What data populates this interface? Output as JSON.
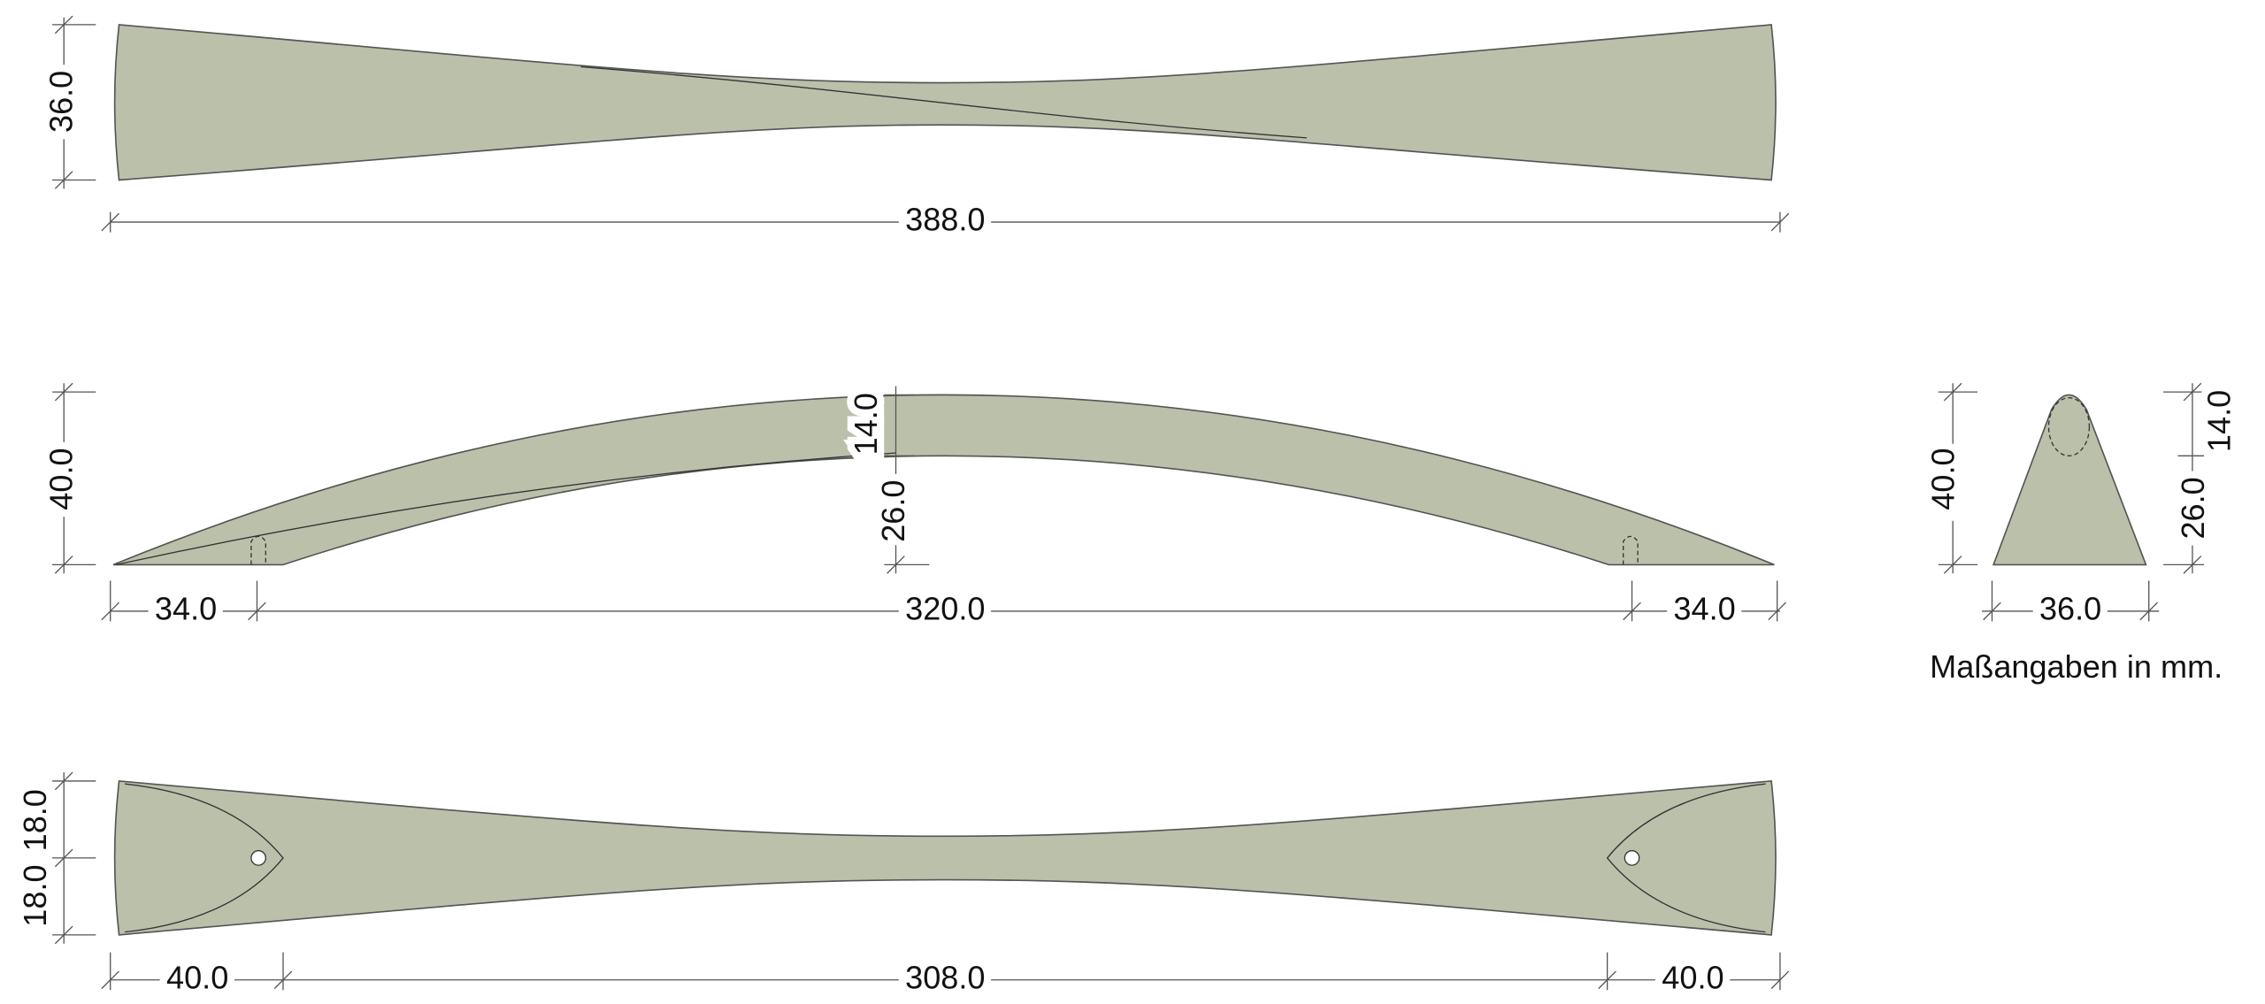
{
  "top_view": {
    "height": "36.0",
    "length": "388.0"
  },
  "side_view": {
    "height": "40.0",
    "rise": "14.0",
    "base": "26.0",
    "left_offset": "34.0",
    "span": "320.0",
    "right_offset": "34.0"
  },
  "bottom_view": {
    "upper_half": "18.0",
    "lower_half": "18.0",
    "left_offset": "40.0",
    "span": "308.0",
    "right_offset": "40.0"
  },
  "end_view": {
    "height": "40.0",
    "top": "14.0",
    "bottom": "26.0",
    "width": "36.0"
  },
  "note": "Maßangaben in mm."
}
